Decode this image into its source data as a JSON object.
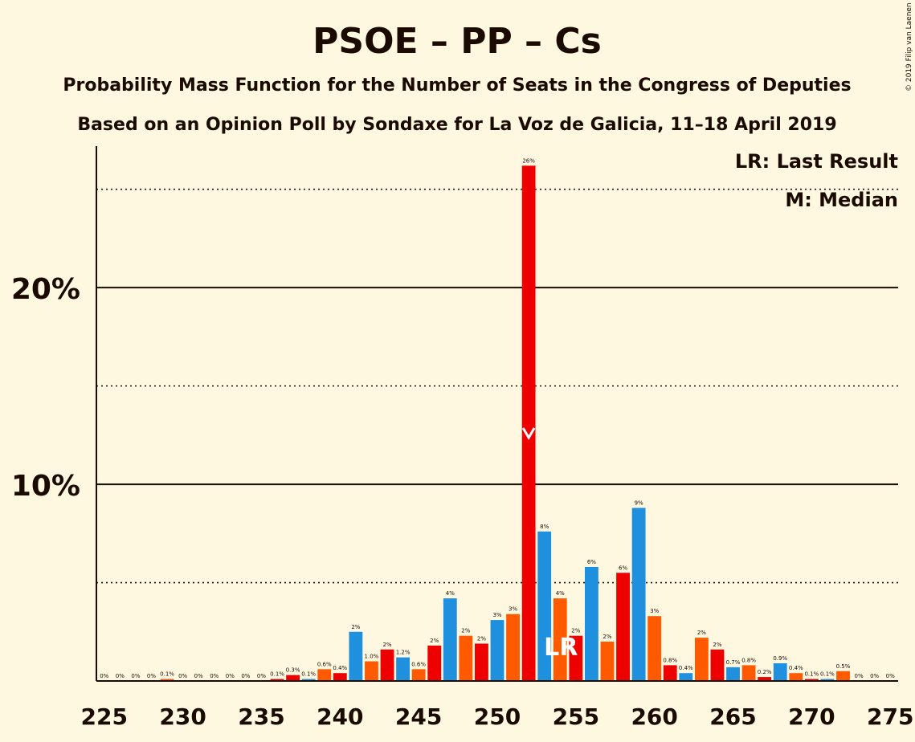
{
  "chart_data": {
    "type": "bar",
    "title": "PSOE – PP – Cs",
    "subtitle1": "Probability Mass Function for the Number of Seats in the Congress of Deputies",
    "subtitle2": "Based on an Opinion Poll by Sondaxe for La Voz de Galicia, 11–18 April 2019",
    "copyright": "© 2019 Filip van Laenen",
    "legend": {
      "lr": "LR: Last Result",
      "m": "M: Median",
      "placement": "top-right"
    },
    "x_ticks": [
      225,
      230,
      235,
      240,
      245,
      250,
      255,
      260,
      265,
      270,
      275
    ],
    "y_ticks": [
      {
        "value": 10,
        "label": "10%"
      },
      {
        "value": 20,
        "label": "20%"
      }
    ],
    "y_gridlines_dotted": [
      5,
      15,
      25
    ],
    "ylim": [
      0,
      28.5
    ],
    "xlim": [
      224.5,
      275.5
    ],
    "median_seat": 252,
    "last_result_seat": 254,
    "lr_marker": "LR",
    "colors": {
      "blue": "#1E90DD",
      "orange": "#FF5A00",
      "red": "#EE0000",
      "background": "#FFF8E1",
      "text": "#1a0a00"
    },
    "bars": [
      {
        "seat": 225,
        "value": 0,
        "label": "0%",
        "color": "blue"
      },
      {
        "seat": 226,
        "value": 0,
        "label": "0%",
        "color": "orange"
      },
      {
        "seat": 227,
        "value": 0,
        "label": "0%",
        "color": "red"
      },
      {
        "seat": 228,
        "value": 0,
        "label": "0%",
        "color": "blue"
      },
      {
        "seat": 229,
        "value": 0.1,
        "label": "0.1%",
        "color": "orange"
      },
      {
        "seat": 230,
        "value": 0,
        "label": "0%",
        "color": "red"
      },
      {
        "seat": 231,
        "value": 0,
        "label": "0%",
        "color": "blue"
      },
      {
        "seat": 232,
        "value": 0,
        "label": "0%",
        "color": "orange"
      },
      {
        "seat": 233,
        "value": 0,
        "label": "0%",
        "color": "red"
      },
      {
        "seat": 234,
        "value": 0,
        "label": "0%",
        "color": "blue"
      },
      {
        "seat": 235,
        "value": 0,
        "label": "0%",
        "color": "orange"
      },
      {
        "seat": 236,
        "value": 0.1,
        "label": "0.1%",
        "color": "red"
      },
      {
        "seat": 237,
        "value": 0.3,
        "label": "0.3%",
        "color": "red"
      },
      {
        "seat": 238,
        "value": 0.1,
        "label": "0.1%",
        "color": "blue"
      },
      {
        "seat": 239,
        "value": 0.6,
        "label": "0.6%",
        "color": "orange"
      },
      {
        "seat": 240,
        "value": 0.4,
        "label": "0.4%",
        "color": "red"
      },
      {
        "seat": 241,
        "value": 2.5,
        "label": "2%",
        "color": "blue"
      },
      {
        "seat": 242,
        "value": 1.0,
        "label": "1.0%",
        "color": "orange"
      },
      {
        "seat": 243,
        "value": 1.6,
        "label": "2%",
        "color": "red"
      },
      {
        "seat": 244,
        "value": 1.2,
        "label": "1.2%",
        "color": "blue"
      },
      {
        "seat": 245,
        "value": 0.6,
        "label": "0.6%",
        "color": "orange"
      },
      {
        "seat": 246,
        "value": 1.8,
        "label": "2%",
        "color": "red"
      },
      {
        "seat": 247,
        "value": 4.2,
        "label": "4%",
        "color": "blue"
      },
      {
        "seat": 248,
        "value": 2.3,
        "label": "2%",
        "color": "orange"
      },
      {
        "seat": 249,
        "value": 1.9,
        "label": "2%",
        "color": "red"
      },
      {
        "seat": 250,
        "value": 3.1,
        "label": "3%",
        "color": "blue"
      },
      {
        "seat": 251,
        "value": 3.4,
        "label": "3%",
        "color": "orange"
      },
      {
        "seat": 252,
        "value": 26.2,
        "label": "26%",
        "color": "red"
      },
      {
        "seat": 253,
        "value": 7.6,
        "label": "8%",
        "color": "blue"
      },
      {
        "seat": 254,
        "value": 4.2,
        "label": "4%",
        "color": "orange"
      },
      {
        "seat": 255,
        "value": 2.3,
        "label": "2%",
        "color": "red"
      },
      {
        "seat": 256,
        "value": 5.8,
        "label": "6%",
        "color": "blue"
      },
      {
        "seat": 257,
        "value": 2.0,
        "label": "2%",
        "color": "orange"
      },
      {
        "seat": 258,
        "value": 5.5,
        "label": "6%",
        "color": "red"
      },
      {
        "seat": 259,
        "value": 8.8,
        "label": "9%",
        "color": "blue"
      },
      {
        "seat": 260,
        "value": 3.3,
        "label": "3%",
        "color": "orange"
      },
      {
        "seat": 261,
        "value": 0.8,
        "label": "0.8%",
        "color": "red"
      },
      {
        "seat": 262,
        "value": 0.4,
        "label": "0.4%",
        "color": "blue"
      },
      {
        "seat": 263,
        "value": 2.2,
        "label": "2%",
        "color": "orange"
      },
      {
        "seat": 264,
        "value": 1.6,
        "label": "2%",
        "color": "red"
      },
      {
        "seat": 265,
        "value": 0.7,
        "label": "0.7%",
        "color": "blue"
      },
      {
        "seat": 266,
        "value": 0.8,
        "label": "0.8%",
        "color": "orange"
      },
      {
        "seat": 267,
        "value": 0.2,
        "label": "0.2%",
        "color": "red"
      },
      {
        "seat": 268,
        "value": 0.9,
        "label": "0.9%",
        "color": "blue"
      },
      {
        "seat": 269,
        "value": 0.4,
        "label": "0.4%",
        "color": "orange"
      },
      {
        "seat": 270,
        "value": 0.1,
        "label": "0.1%",
        "color": "red"
      },
      {
        "seat": 271,
        "value": 0.1,
        "label": "0.1%",
        "color": "blue"
      },
      {
        "seat": 272,
        "value": 0.5,
        "label": "0.5%",
        "color": "orange"
      },
      {
        "seat": 273,
        "value": 0,
        "label": "0%",
        "color": "red"
      },
      {
        "seat": 274,
        "value": 0,
        "label": "0%",
        "color": "blue"
      },
      {
        "seat": 275,
        "value": 0,
        "label": "0%",
        "color": "orange"
      }
    ]
  }
}
